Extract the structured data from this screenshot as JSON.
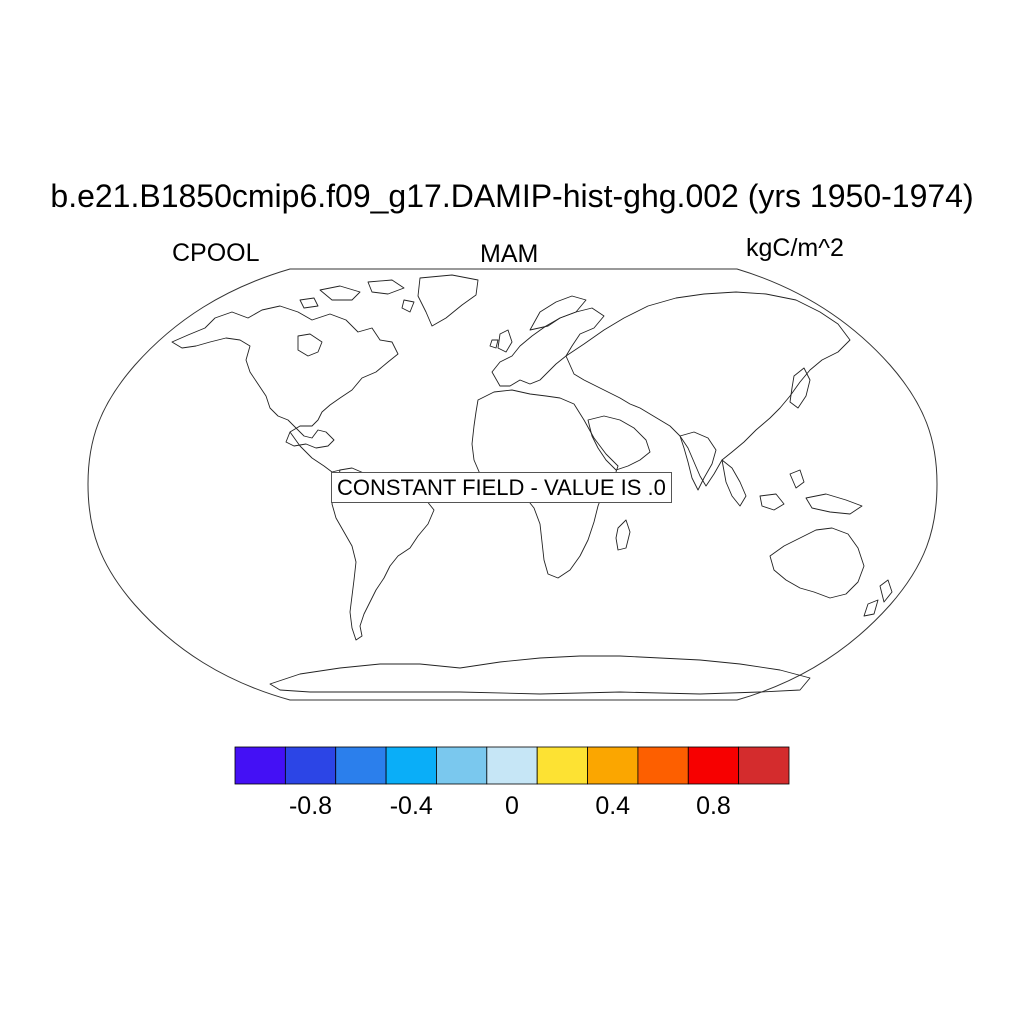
{
  "header": {
    "title": "b.e21.B1850cmip6.f09_g17.DAMIP-hist-ghg.002 (yrs 1950-1974)",
    "left_label": "CPOOL",
    "center_label": "MAM",
    "right_label": "kgC/m^2"
  },
  "map": {
    "projection": "Robinson",
    "coastline_color": "#000000",
    "notice": "CONSTANT FIELD - VALUE IS .0"
  },
  "colorbar": {
    "colors": [
      "#4410f5",
      "#2c45e6",
      "#2b7fec",
      "#0aaef8",
      "#7ac8ee",
      "#c6e6f6",
      "#fde233",
      "#fba600",
      "#fd5f00",
      "#f70000",
      "#d42c2d"
    ],
    "ticks": [
      {
        "value": -0.8,
        "label": "-0.8"
      },
      {
        "value": -0.4,
        "label": "-0.4"
      },
      {
        "value": 0,
        "label": "0"
      },
      {
        "value": 0.4,
        "label": "0.4"
      },
      {
        "value": 0.8,
        "label": "0.8"
      }
    ]
  }
}
